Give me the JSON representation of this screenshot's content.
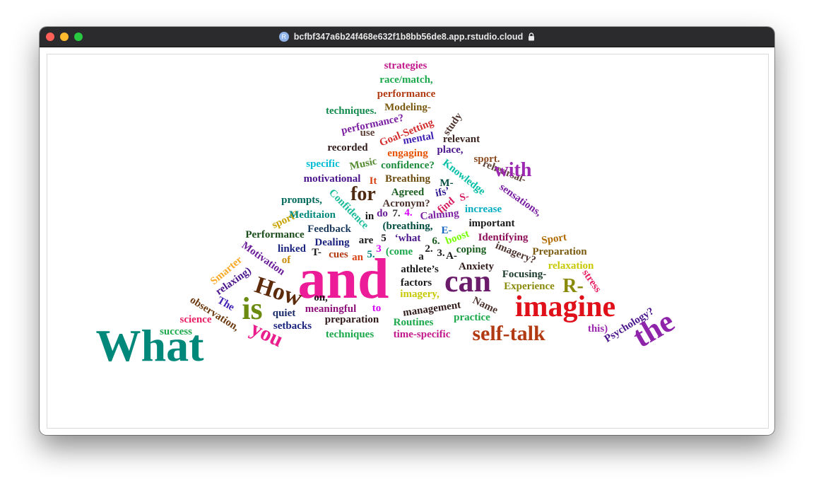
{
  "browser": {
    "url": "bcfbf347a6b24f468e632f1b8bb56de8.app.rstudio.cloud",
    "site_icon_letter": "R"
  },
  "wordcloud": {
    "words": [
      {
        "text": "strategies",
        "color": "#c2188c"
      },
      {
        "text": "race/match,",
        "color": "#1aa84a"
      },
      {
        "text": "performance",
        "color": "#b23a12"
      },
      {
        "text": "techniques.",
        "color": "#118a4c"
      },
      {
        "text": "Modeling-",
        "color": "#7a5a10"
      },
      {
        "text": "performance?",
        "color": "#7b1fa2"
      },
      {
        "text": "study",
        "color": "#4e342e"
      },
      {
        "text": "use",
        "color": "#5d4037"
      },
      {
        "text": "Goal-Setting",
        "color": "#d32f2f"
      },
      {
        "text": "mental",
        "color": "#3f1fb5"
      },
      {
        "text": "relevant",
        "color": "#3e2723"
      },
      {
        "text": "recorded",
        "color": "#311b1b"
      },
      {
        "text": "engaging",
        "color": "#e65100"
      },
      {
        "text": "place,",
        "color": "#4a148c"
      },
      {
        "text": "sport.",
        "color": "#8d4a1f"
      },
      {
        "text": "specific",
        "color": "#00bcd4"
      },
      {
        "text": "Music",
        "color": "#558b2f"
      },
      {
        "text": "confidence?",
        "color": "#1b8a3a"
      },
      {
        "text": "Knowledge",
        "color": "#00bfa5"
      },
      {
        "text": "rehearsal-",
        "color": "#5d4037"
      },
      {
        "text": "with",
        "color": "#9c27b0"
      },
      {
        "text": "motivational",
        "color": "#4a148c"
      },
      {
        "text": "It",
        "color": "#d84315"
      },
      {
        "text": "Breathing",
        "color": "#6d4c10"
      },
      {
        "text": "M-",
        "color": "#004d40"
      },
      {
        "text": "sensations,",
        "color": "#7b1fa2"
      },
      {
        "text": "for",
        "color": "#4e2a10"
      },
      {
        "text": "Agreed",
        "color": "#1b5e20"
      },
      {
        "text": "ifs’",
        "color": "#311b92"
      },
      {
        "text": "S-",
        "color": "#d81b60"
      },
      {
        "text": "prompts,",
        "color": "#00695c"
      },
      {
        "text": "Confidence",
        "color": "#1abc9c"
      },
      {
        "text": "Acronym?",
        "color": "#4e342e"
      },
      {
        "text": "find",
        "color": "#d81b60"
      },
      {
        "text": "increase",
        "color": "#00acc1"
      },
      {
        "text": "sport?",
        "color": "#c8a400"
      },
      {
        "text": "Meditaion",
        "color": "#00897b"
      },
      {
        "text": "do",
        "color": "#6a1b9a"
      },
      {
        "text": "7.",
        "color": "#333333"
      },
      {
        "text": "4.",
        "color": "#d500f9"
      },
      {
        "text": "Calming",
        "color": "#7b1fa2"
      },
      {
        "text": "important",
        "color": "#1a1a1a"
      },
      {
        "text": "in",
        "color": "#1a1a1a"
      },
      {
        "text": "Feedback",
        "color": "#1b3a5c"
      },
      {
        "text": "(breathing,",
        "color": "#004d40"
      },
      {
        "text": "E-",
        "color": "#1565c0"
      },
      {
        "text": "Performance",
        "color": "#1b4d1b"
      },
      {
        "text": "Sport",
        "color": "#b26a00"
      },
      {
        "text": "boost",
        "color": "#76ff03"
      },
      {
        "text": "Identifying",
        "color": "#8e0e5a"
      },
      {
        "text": "5",
        "color": "#1a1a1a"
      },
      {
        "text": "‘what",
        "color": "#4a148c"
      },
      {
        "text": "are",
        "color": "#1a1a1a"
      },
      {
        "text": "Dealing",
        "color": "#1a237e"
      },
      {
        "text": "6.",
        "color": "#1b5e20"
      },
      {
        "text": "Motivation",
        "color": "#6a1b9a"
      },
      {
        "text": "linked",
        "color": "#1a237e"
      },
      {
        "text": "T-",
        "color": "#1a1a1a"
      },
      {
        "text": "2.",
        "color": "#1a1a1a"
      },
      {
        "text": "3.",
        "color": "#1a1a1a"
      },
      {
        "text": "coping",
        "color": "#1b5e20"
      },
      {
        "text": "imagery?",
        "color": "#4e342e"
      },
      {
        "text": "Preparation",
        "color": "#7a5a10"
      },
      {
        "text": "3",
        "color": "#d500f9"
      },
      {
        "text": "(come",
        "color": "#1aa84a"
      },
      {
        "text": "cues",
        "color": "#b23a12"
      },
      {
        "text": "a",
        "color": "#1a1a1a"
      },
      {
        "text": "A-",
        "color": "#1a1a1a"
      },
      {
        "text": "Smarter",
        "color": "#f9a825"
      },
      {
        "text": "of",
        "color": "#c88a00"
      },
      {
        "text": "an",
        "color": "#d84315"
      },
      {
        "text": "5.",
        "color": "#00897b"
      },
      {
        "text": "and",
        "color": "#ec1b97"
      },
      {
        "text": "athlete’s",
        "color": "#1a1a1a"
      },
      {
        "text": "Anxiety",
        "color": "#311b1b"
      },
      {
        "text": "relaxation",
        "color": "#c8c800"
      },
      {
        "text": "relaxing)",
        "color": "#4a148c"
      },
      {
        "text": "How",
        "color": "#5d2a0a"
      },
      {
        "text": "Focusing-",
        "color": "#1b3a2a"
      },
      {
        "text": "can",
        "color": "#6a1b6a"
      },
      {
        "text": "factors",
        "color": "#1a1a1a"
      },
      {
        "text": "R-",
        "color": "#8a8a0a"
      },
      {
        "text": "stress",
        "color": "#e91e63"
      },
      {
        "text": "Experience",
        "color": "#8a8a0a"
      },
      {
        "text": "on,",
        "color": "#1a1a1a"
      },
      {
        "text": "imagery,",
        "color": "#c8c800"
      },
      {
        "text": "The",
        "color": "#3f1fb5"
      },
      {
        "text": "observation,",
        "color": "#6d3a10"
      },
      {
        "text": "is",
        "color": "#6a8a10"
      },
      {
        "text": "to",
        "color": "#d500f9"
      },
      {
        "text": "meaningful",
        "color": "#8e0e7a"
      },
      {
        "text": "Name",
        "color": "#4e342e"
      },
      {
        "text": "imagine",
        "color": "#e0101a"
      },
      {
        "text": "quiet",
        "color": "#1b2a6a"
      },
      {
        "text": "management",
        "color": "#311b1b"
      },
      {
        "text": "Psychology?",
        "color": "#4a148c"
      },
      {
        "text": "science",
        "color": "#e91e63"
      },
      {
        "text": "practice",
        "color": "#1aa84a"
      },
      {
        "text": "preparation",
        "color": "#311b1b"
      },
      {
        "text": "Routines",
        "color": "#1aa84a"
      },
      {
        "text": "setbacks",
        "color": "#1a237e"
      },
      {
        "text": "this)",
        "color": "#9c27b0"
      },
      {
        "text": "success",
        "color": "#1aa84a"
      },
      {
        "text": "self-talk",
        "color": "#b23a12"
      },
      {
        "text": "the",
        "color": "#8e24aa"
      },
      {
        "text": "What",
        "color": "#00897b"
      },
      {
        "text": "you",
        "color": "#e91e8c"
      },
      {
        "text": "techniques",
        "color": "#1aa84a"
      },
      {
        "text": "time-specific",
        "color": "#c2188c"
      }
    ]
  }
}
